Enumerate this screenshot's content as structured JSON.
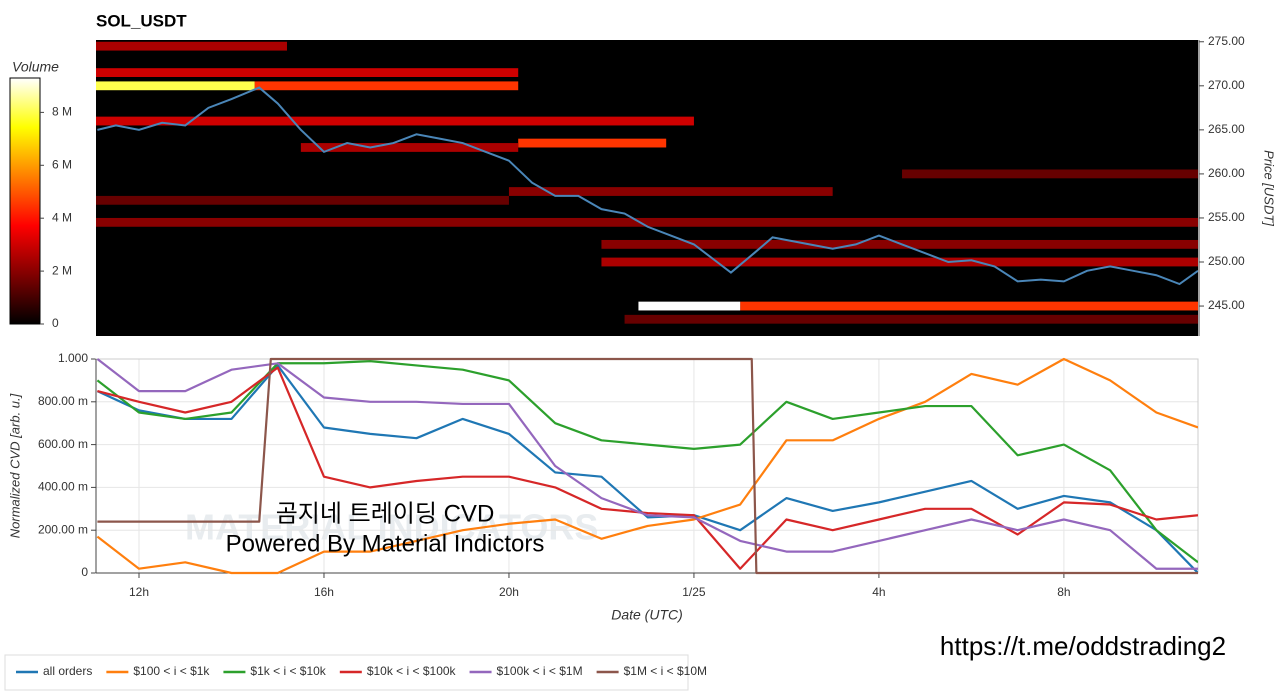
{
  "chart_data": [
    {
      "type": "heatmap",
      "title": "SOL_USDT",
      "ylabel": "Price [USDT]",
      "xlim": [
        11.07,
        34.9
      ],
      "ylim": [
        241.6,
        275.2
      ],
      "yticks": [
        {
          "value": 245,
          "label": "245.00"
        },
        {
          "value": 250,
          "label": "250.00"
        },
        {
          "value": 255,
          "label": "255.00"
        },
        {
          "value": 260,
          "label": "260.00"
        },
        {
          "value": 265,
          "label": "265.00"
        },
        {
          "value": 270,
          "label": "270.00"
        },
        {
          "value": 275,
          "label": "275.00"
        }
      ],
      "colorbar": {
        "label": "Volume",
        "lim": [
          0,
          9300000
        ],
        "ticks": [
          {
            "value": 0,
            "label": "0"
          },
          {
            "value": 2000000,
            "label": "2 M"
          },
          {
            "value": 4000000,
            "label": "4 M"
          },
          {
            "value": 6000000,
            "label": "6 M"
          },
          {
            "value": 8000000,
            "label": "8 M"
          }
        ]
      },
      "bands": [
        {
          "price": 274.5,
          "x0": 11.07,
          "x1": 15.2,
          "volume": 2500000
        },
        {
          "price": 271.5,
          "x0": 11.07,
          "x1": 20.2,
          "volume": 3000000
        },
        {
          "price": 270,
          "x0": 14.5,
          "x1": 20.2,
          "volume": 4500000
        },
        {
          "price": 270,
          "x0": 11.07,
          "x1": 14.5,
          "volume": 8000000
        },
        {
          "price": 266,
          "x0": 11.07,
          "x1": 24,
          "volume": 3000000
        },
        {
          "price": 263.5,
          "x0": 20.2,
          "x1": 23.4,
          "volume": 4500000
        },
        {
          "price": 263,
          "x0": 15.5,
          "x1": 20.2,
          "volume": 2500000
        },
        {
          "price": 260,
          "x0": 28.5,
          "x1": 34.9,
          "volume": 1500000
        },
        {
          "price": 258,
          "x0": 20,
          "x1": 27,
          "volume": 2000000
        },
        {
          "price": 257,
          "x0": 11.07,
          "x1": 20,
          "volume": 1500000
        },
        {
          "price": 254.5,
          "x0": 11.07,
          "x1": 34.9,
          "volume": 2000000
        },
        {
          "price": 252,
          "x0": 22,
          "x1": 34.9,
          "volume": 2000000
        },
        {
          "price": 250,
          "x0": 22,
          "x1": 34.9,
          "volume": 2500000
        },
        {
          "price": 245,
          "x0": 25,
          "x1": 34.9,
          "volume": 4500000
        },
        {
          "price": 245,
          "x0": 22.8,
          "x1": 25,
          "volume": 9300000
        },
        {
          "price": 243.5,
          "x0": 22.5,
          "x1": 34.9,
          "volume": 1500000
        }
      ],
      "price": {
        "color": "#4a86b8",
        "x": [
          11.1,
          11.5,
          12,
          12.5,
          13,
          13.5,
          14,
          14.6,
          15,
          15.5,
          16,
          16.5,
          17,
          17.5,
          18,
          18.5,
          19,
          19.5,
          20,
          20.5,
          21,
          21.5,
          22,
          22.5,
          23,
          23.5,
          24,
          24.5,
          24.8,
          25.3,
          25.7,
          26,
          26.5,
          27,
          27.5,
          28,
          28.5,
          29,
          29.5,
          30,
          30.5,
          31,
          31.5,
          32,
          32.5,
          33,
          33.5,
          34,
          34.5,
          34.9
        ],
        "values": [
          265,
          265.5,
          265,
          265.8,
          265.5,
          267.5,
          268.5,
          269.8,
          268,
          265,
          262.5,
          263.5,
          263,
          263.5,
          264.5,
          264,
          263.5,
          262.5,
          261.5,
          259,
          257.5,
          257.5,
          256,
          255.5,
          254,
          253,
          252,
          250,
          248.8,
          251,
          252.8,
          252.5,
          252,
          251.5,
          252,
          253,
          252,
          251,
          250,
          250.2,
          249.5,
          247.8,
          248,
          247.8,
          249,
          249.5,
          249,
          248.5,
          247.5,
          249
        ]
      }
    },
    {
      "type": "line",
      "xlabel": "Date (UTC)",
      "ylabel": "Normalized CVD [arb. u.]",
      "xlim": [
        11.07,
        34.9
      ],
      "ylim": [
        0,
        1
      ],
      "xticks": [
        {
          "value": 12,
          "label": "12h"
        },
        {
          "value": 16,
          "label": "16h"
        },
        {
          "value": 20,
          "label": "20h"
        },
        {
          "value": 24,
          "label": "1/25"
        },
        {
          "value": 28,
          "label": "4h"
        },
        {
          "value": 32,
          "label": "8h"
        }
      ],
      "yticks": [
        0,
        {
          "value": 0.2,
          "label": "200.00 m"
        },
        {
          "value": 0.4,
          "label": "400.00 m"
        },
        {
          "value": 0.6,
          "label": "600.00 m"
        },
        {
          "value": 0.8,
          "label": "800.00 m"
        },
        {
          "value": 1,
          "label": "1.000"
        }
      ],
      "grid": true,
      "x": [
        11.1,
        12,
        13,
        14,
        15,
        16,
        17,
        18,
        19,
        20,
        21,
        22,
        23,
        24,
        25,
        26,
        27,
        28,
        29,
        30,
        31,
        32,
        33,
        34,
        34.9
      ],
      "series": [
        {
          "name": "all orders",
          "color": "#1f77b4",
          "values": [
            0.85,
            0.76,
            0.72,
            0.72,
            0.97,
            0.68,
            0.65,
            0.63,
            0.72,
            0.65,
            0.47,
            0.45,
            0.26,
            0.27,
            0.2,
            0.35,
            0.29,
            0.33,
            0.38,
            0.43,
            0.3,
            0.36,
            0.33,
            0.2,
            0.0
          ]
        },
        {
          "name": "$100 < i < $1k",
          "color": "#ff7f0e",
          "values": [
            0.17,
            0.02,
            0.05,
            0.0,
            0.0,
            0.1,
            0.1,
            0.15,
            0.2,
            0.23,
            0.25,
            0.16,
            0.22,
            0.25,
            0.32,
            0.62,
            0.62,
            0.72,
            0.8,
            0.93,
            0.88,
            1.0,
            0.9,
            0.75,
            0.68
          ]
        },
        {
          "name": "$1k < i < $10k",
          "color": "#2ca02c",
          "values": [
            0.9,
            0.75,
            0.72,
            0.75,
            0.98,
            0.98,
            0.99,
            0.97,
            0.95,
            0.9,
            0.7,
            0.62,
            0.6,
            0.58,
            0.6,
            0.8,
            0.72,
            0.75,
            0.78,
            0.78,
            0.55,
            0.6,
            0.48,
            0.2,
            0.05
          ]
        },
        {
          "name": "$10k < i < $100k",
          "color": "#d62728",
          "values": [
            0.85,
            0.8,
            0.75,
            0.8,
            0.96,
            0.45,
            0.4,
            0.43,
            0.45,
            0.45,
            0.4,
            0.3,
            0.28,
            0.27,
            0.02,
            0.25,
            0.2,
            0.25,
            0.3,
            0.3,
            0.18,
            0.33,
            0.32,
            0.25,
            0.27
          ]
        },
        {
          "name": "$100k < i < $1M",
          "color": "#9467bd",
          "values": [
            1.0,
            0.85,
            0.85,
            0.95,
            0.98,
            0.82,
            0.8,
            0.8,
            0.79,
            0.79,
            0.5,
            0.35,
            0.27,
            0.26,
            0.15,
            0.1,
            0.1,
            0.15,
            0.2,
            0.25,
            0.2,
            0.25,
            0.2,
            0.02,
            0.02
          ]
        },
        {
          "name": "$1M < i < $10M",
          "color": "#8c564b",
          "x": [
            11.1,
            14.6,
            14.85,
            25.25,
            25.35,
            34.9
          ],
          "values": [
            0.24,
            0.24,
            1,
            1,
            0,
            0
          ]
        }
      ],
      "watermark": "MATERIAL INDICATORS",
      "annotations": [
        "곰지네 트레이딩 CVD",
        "Powered By Material Indictors"
      ]
    }
  ],
  "footer_link": "https://t.me/oddstrading2"
}
